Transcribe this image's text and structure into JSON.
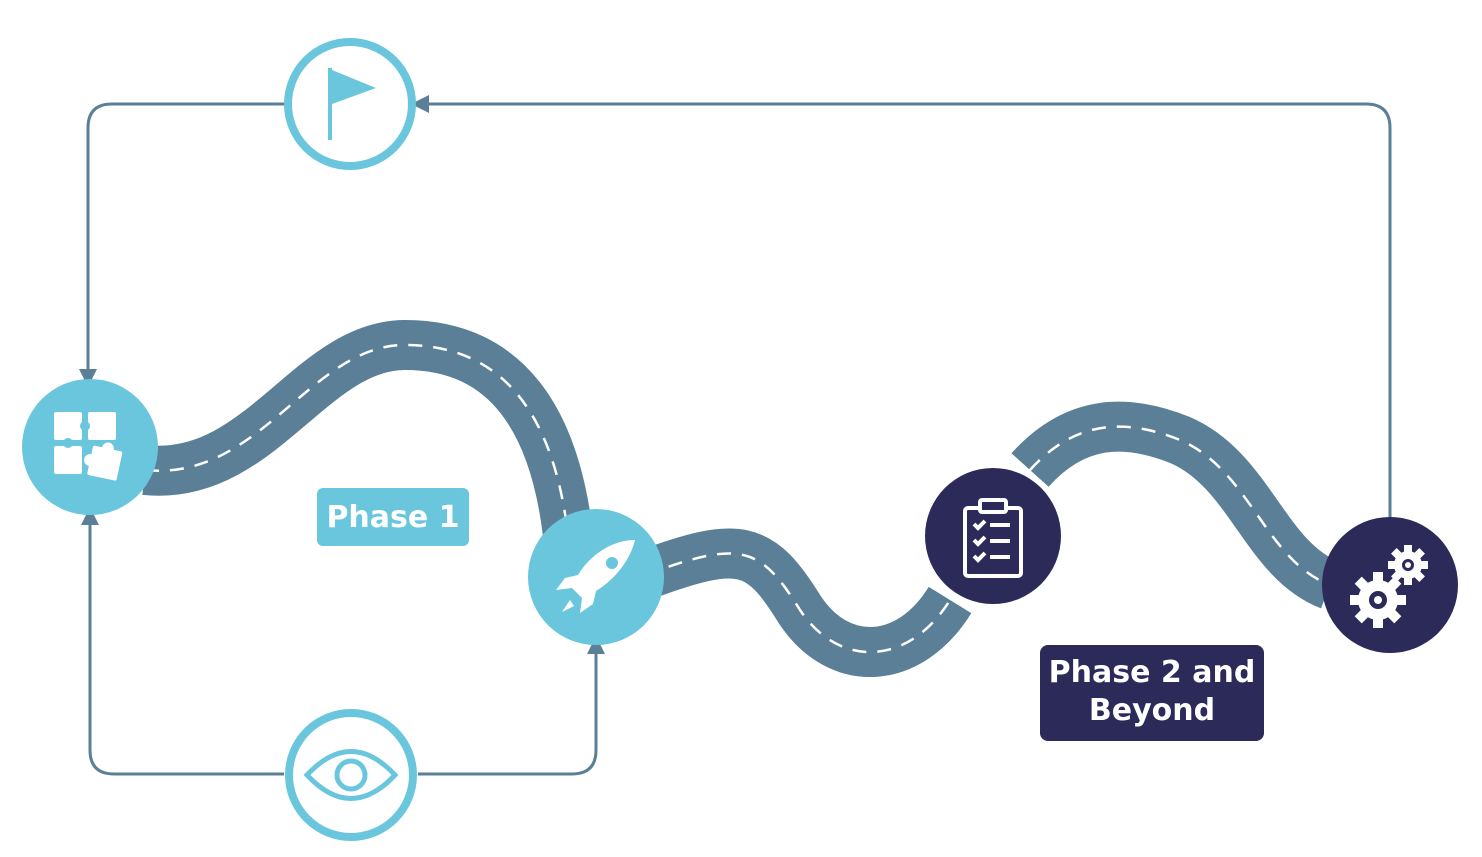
{
  "phases": {
    "phase1": {
      "label": "Phase 1",
      "color": "#6ac6dc"
    },
    "phase2": {
      "line1": "Phase 2 and",
      "line2": "Beyond",
      "color": "#2b2a59"
    }
  },
  "colors": {
    "road": "#5a7f96",
    "loop_line": "#5a7f96",
    "light_node": "#6ac6dc",
    "dark_node": "#2b2a59",
    "ring_outline": "#6ac6dc"
  },
  "nodes": [
    {
      "name": "puzzle",
      "icon": "puzzle-icon",
      "style": "light"
    },
    {
      "name": "rocket",
      "icon": "rocket-icon",
      "style": "light"
    },
    {
      "name": "clipboard",
      "icon": "clipboard-checklist-icon",
      "style": "dark"
    },
    {
      "name": "gears",
      "icon": "gears-icon",
      "style": "dark"
    },
    {
      "name": "flag",
      "icon": "flag-icon",
      "style": "outline"
    },
    {
      "name": "eye",
      "icon": "eye-icon",
      "style": "outline"
    }
  ]
}
